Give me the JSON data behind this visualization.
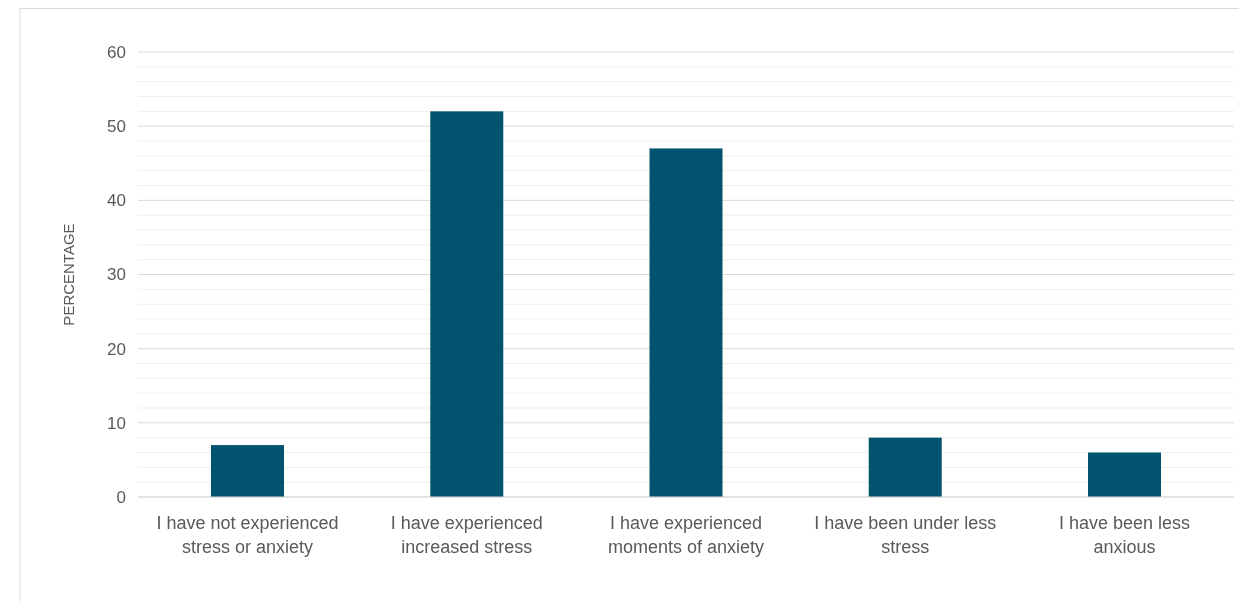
{
  "chart_data": {
    "type": "bar",
    "ylabel": "PERCENTAGE",
    "categories": [
      "I have not experienced stress or anxiety",
      "I have experienced increased stress",
      "I have experienced moments of anxiety",
      "I have been under less stress",
      "I have been less anxious"
    ],
    "values": [
      7,
      52,
      47,
      8,
      6
    ],
    "color": "#02546e",
    "ylim": [
      0,
      60
    ],
    "yticks": [
      0,
      {
        "value": 2,
        "label": null
      },
      {
        "value": 4,
        "label": null
      },
      {
        "value": 6,
        "label": null
      },
      {
        "value": 8,
        "label": null
      },
      10,
      {
        "value": 12,
        "label": null
      },
      {
        "value": 14,
        "label": null
      },
      {
        "value": 16,
        "label": null
      },
      {
        "value": 18,
        "label": null
      },
      20,
      {
        "value": 22,
        "label": null
      },
      {
        "value": 24,
        "label": null
      },
      {
        "value": 26,
        "label": null
      },
      {
        "value": 28,
        "label": null
      },
      30,
      {
        "value": 32,
        "label": null
      },
      {
        "value": 34,
        "label": null
      },
      {
        "value": 36,
        "label": null
      },
      {
        "value": 38,
        "label": null
      },
      40,
      {
        "value": 42,
        "label": null
      },
      {
        "value": 44,
        "label": null
      },
      {
        "value": 46,
        "label": null
      },
      {
        "value": 48,
        "label": null
      },
      50,
      {
        "value": 52,
        "label": null
      },
      {
        "value": 54,
        "label": null
      },
      {
        "value": 56,
        "label": null
      },
      {
        "value": 58,
        "label": null
      },
      60
    ],
    "grid": "y"
  }
}
